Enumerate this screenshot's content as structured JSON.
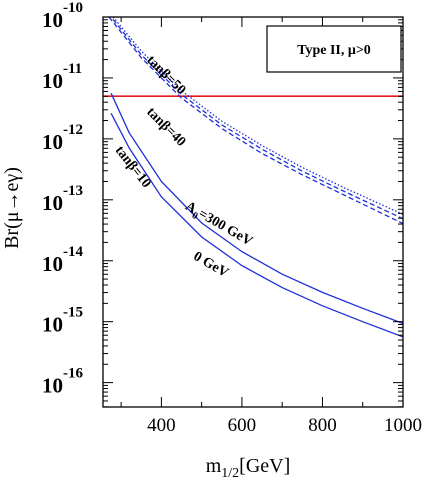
{
  "chart_data": {
    "type": "line",
    "xlabel": "m",
    "xlabel_sub": "1/2",
    "xlabel_unit": "[GeV]",
    "ylabel": "Br(μ→eγ)",
    "xlim": [
      255,
      1000
    ],
    "ylim_log10": [
      -16.4,
      -10.0
    ],
    "y_scale": "log",
    "x_ticks": [
      400,
      600,
      800,
      1000
    ],
    "y_ticks": [
      {
        "base": "10",
        "exp": "-10",
        "log": -10
      },
      {
        "base": "10",
        "exp": "-11",
        "log": -11
      },
      {
        "base": "10",
        "exp": "-12",
        "log": -12
      },
      {
        "base": "10",
        "exp": "-13",
        "log": -13
      },
      {
        "base": "10",
        "exp": "-14",
        "log": -14
      },
      {
        "base": "10",
        "exp": "-15",
        "log": -15
      },
      {
        "base": "10",
        "exp": "-16",
        "log": -16
      }
    ],
    "legend": "Type II, μ>0",
    "bound_log10": -11.3,
    "bound_color": "#e31a1c",
    "curve_color": "#1f2fd8",
    "series": [
      {
        "style": "dotted",
        "x": [
          280,
          350,
          450,
          550,
          650,
          750,
          850,
          1000
        ],
        "y": [
          -10.0,
          -10.56,
          -11.21,
          -11.71,
          -12.11,
          -12.47,
          -12.79,
          -13.24
        ]
      },
      {
        "style": "dashed",
        "x": [
          280,
          350,
          450,
          550,
          650,
          750,
          850,
          1000
        ],
        "y": [
          -10.04,
          -10.62,
          -11.27,
          -11.77,
          -12.17,
          -12.53,
          -12.85,
          -13.31
        ]
      },
      {
        "style": "dashed",
        "x": [
          270,
          350,
          450,
          550,
          650,
          750,
          850,
          1000
        ],
        "y": [
          -10.0,
          -10.67,
          -11.33,
          -11.83,
          -12.24,
          -12.59,
          -12.91,
          -13.39
        ]
      },
      {
        "style": "solid",
        "x": [
          275,
          320,
          400,
          500,
          600,
          700,
          800,
          900,
          1000
        ],
        "y": [
          -11.25,
          -11.9,
          -12.7,
          -13.38,
          -13.85,
          -14.22,
          -14.52,
          -14.78,
          -15.03
        ]
      },
      {
        "style": "solid",
        "x": [
          275,
          320,
          400,
          500,
          600,
          700,
          800,
          900,
          1000
        ],
        "y": [
          -11.58,
          -12.15,
          -12.95,
          -13.61,
          -14.08,
          -14.44,
          -14.74,
          -15.0,
          -15.25
        ]
      }
    ],
    "annotations": [
      {
        "text": "tanβ=50",
        "x": 405,
        "y": -11.0,
        "angle": 45
      },
      {
        "text": "tanβ=40",
        "x": 405,
        "y": -11.85,
        "angle": 45
      },
      {
        "text": "tanβ=10",
        "x": 322,
        "y": -12.5,
        "angle": 52
      },
      {
        "text": "A",
        "sub": "0",
        "tail": "=300 GeV",
        "x": 538,
        "y": -13.45,
        "angle": 30
      },
      {
        "text": "0 GeV",
        "x": 518,
        "y": -14.12,
        "angle": 30
      }
    ]
  }
}
